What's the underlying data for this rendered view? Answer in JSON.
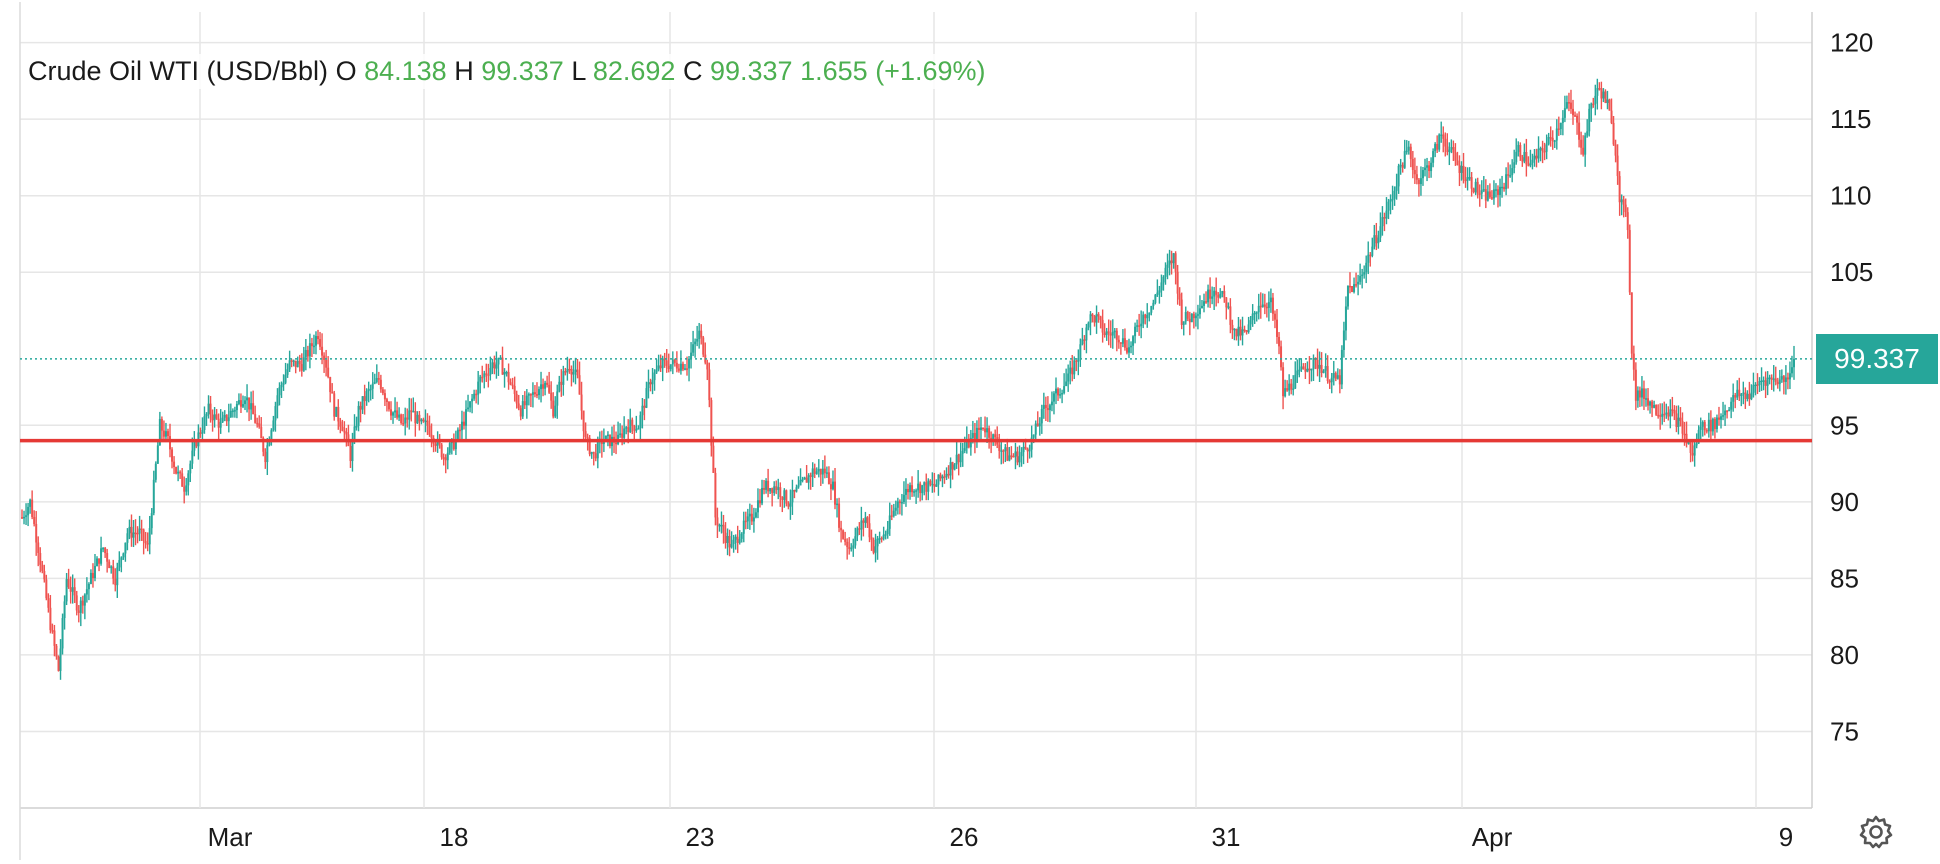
{
  "legend": {
    "symbol": "Crude Oil WTI (USD/Bbl)",
    "open_label": "O",
    "open": "84.138",
    "high_label": "H",
    "high": "99.337",
    "low_label": "L",
    "low": "82.692",
    "close_label": "C",
    "close": "99.337",
    "change": "1.655",
    "change_pct": "(+1.69%)"
  },
  "last_price_tag": "99.337",
  "colors": {
    "up": "#26a69a",
    "down": "#ef5350",
    "level_line": "#e53935",
    "grid": "#e6e6e6",
    "legend_value": "#4caf50"
  },
  "settings_icon": "gear-icon",
  "chart_data": {
    "type": "candlestick",
    "ylim": [
      70,
      122
    ],
    "y_ticks": [
      75,
      80,
      85,
      90,
      95,
      105,
      110,
      115,
      120
    ],
    "x_tick_labels": [
      "Mar",
      "18",
      "23",
      "26",
      "31",
      "Apr",
      "9"
    ],
    "horizontal_level": 94,
    "last_price": 99.337,
    "anchors": [
      [
        0,
        89
      ],
      [
        4,
        90
      ],
      [
        8,
        87
      ],
      [
        14,
        82
      ],
      [
        18,
        79
      ],
      [
        22,
        85
      ],
      [
        28,
        83
      ],
      [
        34,
        85
      ],
      [
        40,
        87
      ],
      [
        46,
        85
      ],
      [
        52,
        88
      ],
      [
        58,
        88
      ],
      [
        62,
        87
      ],
      [
        68,
        95
      ],
      [
        72,
        94
      ],
      [
        76,
        92
      ],
      [
        80,
        91
      ],
      [
        86,
        94
      ],
      [
        92,
        96
      ],
      [
        98,
        95
      ],
      [
        104,
        96
      ],
      [
        110,
        97
      ],
      [
        116,
        95
      ],
      [
        120,
        93
      ],
      [
        126,
        97
      ],
      [
        132,
        99
      ],
      [
        138,
        99
      ],
      [
        142,
        100
      ],
      [
        146,
        101
      ],
      [
        150,
        99
      ],
      [
        154,
        96
      ],
      [
        158,
        95
      ],
      [
        162,
        93
      ],
      [
        166,
        96
      ],
      [
        170,
        97
      ],
      [
        176,
        98
      ],
      [
        182,
        96
      ],
      [
        188,
        95
      ],
      [
        192,
        96
      ],
      [
        196,
        95
      ],
      [
        200,
        95
      ],
      [
        204,
        94
      ],
      [
        208,
        93
      ],
      [
        214,
        94
      ],
      [
        220,
        96
      ],
      [
        226,
        98
      ],
      [
        232,
        99
      ],
      [
        236,
        99
      ],
      [
        240,
        98
      ],
      [
        246,
        96
      ],
      [
        252,
        97
      ],
      [
        258,
        98
      ],
      [
        262,
        96
      ],
      [
        266,
        98
      ],
      [
        270,
        99
      ],
      [
        274,
        98
      ],
      [
        278,
        94
      ],
      [
        282,
        93
      ],
      [
        286,
        94
      ],
      [
        290,
        94
      ],
      [
        294,
        94
      ],
      [
        298,
        95
      ],
      [
        304,
        95
      ],
      [
        310,
        98
      ],
      [
        316,
        99
      ],
      [
        322,
        99
      ],
      [
        328,
        99
      ],
      [
        334,
        101
      ],
      [
        338,
        99
      ],
      [
        340,
        94
      ],
      [
        342,
        89
      ],
      [
        346,
        88
      ],
      [
        350,
        87
      ],
      [
        354,
        88
      ],
      [
        360,
        89
      ],
      [
        366,
        91
      ],
      [
        372,
        91
      ],
      [
        378,
        90
      ],
      [
        384,
        91
      ],
      [
        390,
        92
      ],
      [
        396,
        92
      ],
      [
        400,
        91
      ],
      [
        404,
        88
      ],
      [
        408,
        87
      ],
      [
        412,
        88
      ],
      [
        416,
        89
      ],
      [
        420,
        87
      ],
      [
        426,
        88
      ],
      [
        432,
        90
      ],
      [
        438,
        91
      ],
      [
        444,
        91
      ],
      [
        450,
        91
      ],
      [
        456,
        92
      ],
      [
        462,
        93
      ],
      [
        468,
        94
      ],
      [
        474,
        95
      ],
      [
        480,
        94
      ],
      [
        486,
        93
      ],
      [
        492,
        93
      ],
      [
        498,
        94
      ],
      [
        504,
        96
      ],
      [
        510,
        97
      ],
      [
        516,
        98
      ],
      [
        522,
        100
      ],
      [
        526,
        102
      ],
      [
        530,
        102
      ],
      [
        534,
        101
      ],
      [
        540,
        101
      ],
      [
        546,
        100
      ],
      [
        552,
        102
      ],
      [
        558,
        103
      ],
      [
        564,
        105
      ],
      [
        568,
        106
      ],
      [
        572,
        102
      ],
      [
        576,
        102
      ],
      [
        582,
        103
      ],
      [
        588,
        104
      ],
      [
        594,
        103
      ],
      [
        598,
        101
      ],
      [
        604,
        101
      ],
      [
        610,
        103
      ],
      [
        616,
        103
      ],
      [
        620,
        100
      ],
      [
        622,
        97
      ],
      [
        628,
        98
      ],
      [
        634,
        99
      ],
      [
        640,
        99
      ],
      [
        646,
        98
      ],
      [
        650,
        98
      ],
      [
        654,
        104
      ],
      [
        658,
        104
      ],
      [
        664,
        106
      ],
      [
        670,
        108
      ],
      [
        676,
        110
      ],
      [
        680,
        112
      ],
      [
        684,
        113
      ],
      [
        688,
        111
      ],
      [
        694,
        112
      ],
      [
        700,
        114
      ],
      [
        704,
        113
      ],
      [
        708,
        112
      ],
      [
        714,
        111
      ],
      [
        720,
        110
      ],
      [
        726,
        110
      ],
      [
        732,
        111
      ],
      [
        738,
        113
      ],
      [
        744,
        112
      ],
      [
        750,
        113
      ],
      [
        756,
        114
      ],
      [
        762,
        116
      ],
      [
        766,
        115
      ],
      [
        770,
        113
      ],
      [
        774,
        116
      ],
      [
        778,
        117
      ],
      [
        782,
        116
      ],
      [
        786,
        113
      ],
      [
        788,
        110
      ],
      [
        792,
        108
      ],
      [
        794,
        100
      ],
      [
        796,
        97
      ],
      [
        800,
        97
      ],
      [
        806,
        96
      ],
      [
        812,
        96
      ],
      [
        818,
        95
      ],
      [
        824,
        93
      ],
      [
        828,
        95
      ],
      [
        834,
        95
      ],
      [
        840,
        96
      ],
      [
        846,
        97
      ],
      [
        852,
        97
      ],
      [
        858,
        98
      ],
      [
        864,
        98
      ],
      [
        870,
        98
      ],
      [
        874,
        99.337
      ]
    ]
  }
}
